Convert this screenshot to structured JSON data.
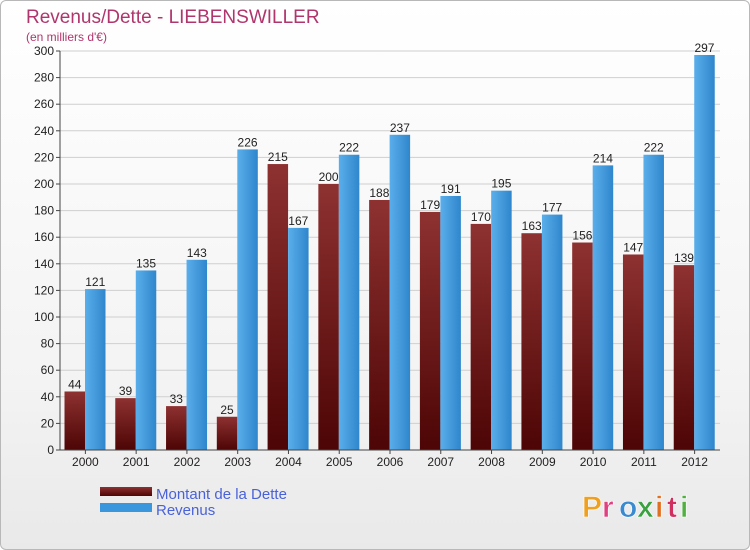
{
  "chart_data": {
    "type": "bar",
    "title": "Revenus/Dette - LIEBENSWILLER",
    "subtitle": "(en milliers d'€)",
    "categories": [
      "2000",
      "2001",
      "2002",
      "2003",
      "2004",
      "2005",
      "2006",
      "2007",
      "2008",
      "2009",
      "2010",
      "2011",
      "2012"
    ],
    "series": [
      {
        "name": "Montant de la Dette",
        "color": "#7a1a1a",
        "values": [
          44,
          39,
          33,
          25,
          215,
          200,
          188,
          179,
          170,
          163,
          156,
          147,
          139
        ]
      },
      {
        "name": "Revenus",
        "color": "#3a96dd",
        "values": [
          121,
          135,
          143,
          226,
          167,
          222,
          237,
          191,
          195,
          177,
          214,
          222,
          297
        ]
      }
    ],
    "ylim": [
      0,
      300
    ],
    "yticks": [
      0,
      20,
      40,
      60,
      80,
      100,
      120,
      140,
      160,
      180,
      200,
      220,
      240,
      260,
      280,
      300
    ],
    "grid": true,
    "legend_position": "bottom-left"
  },
  "logo": {
    "text": "Proxiti",
    "colors": [
      "#f0a020",
      "#e04080",
      "#3a8ad0",
      "#3aa040",
      "#e07020",
      "#d03060",
      "#50b040"
    ]
  }
}
